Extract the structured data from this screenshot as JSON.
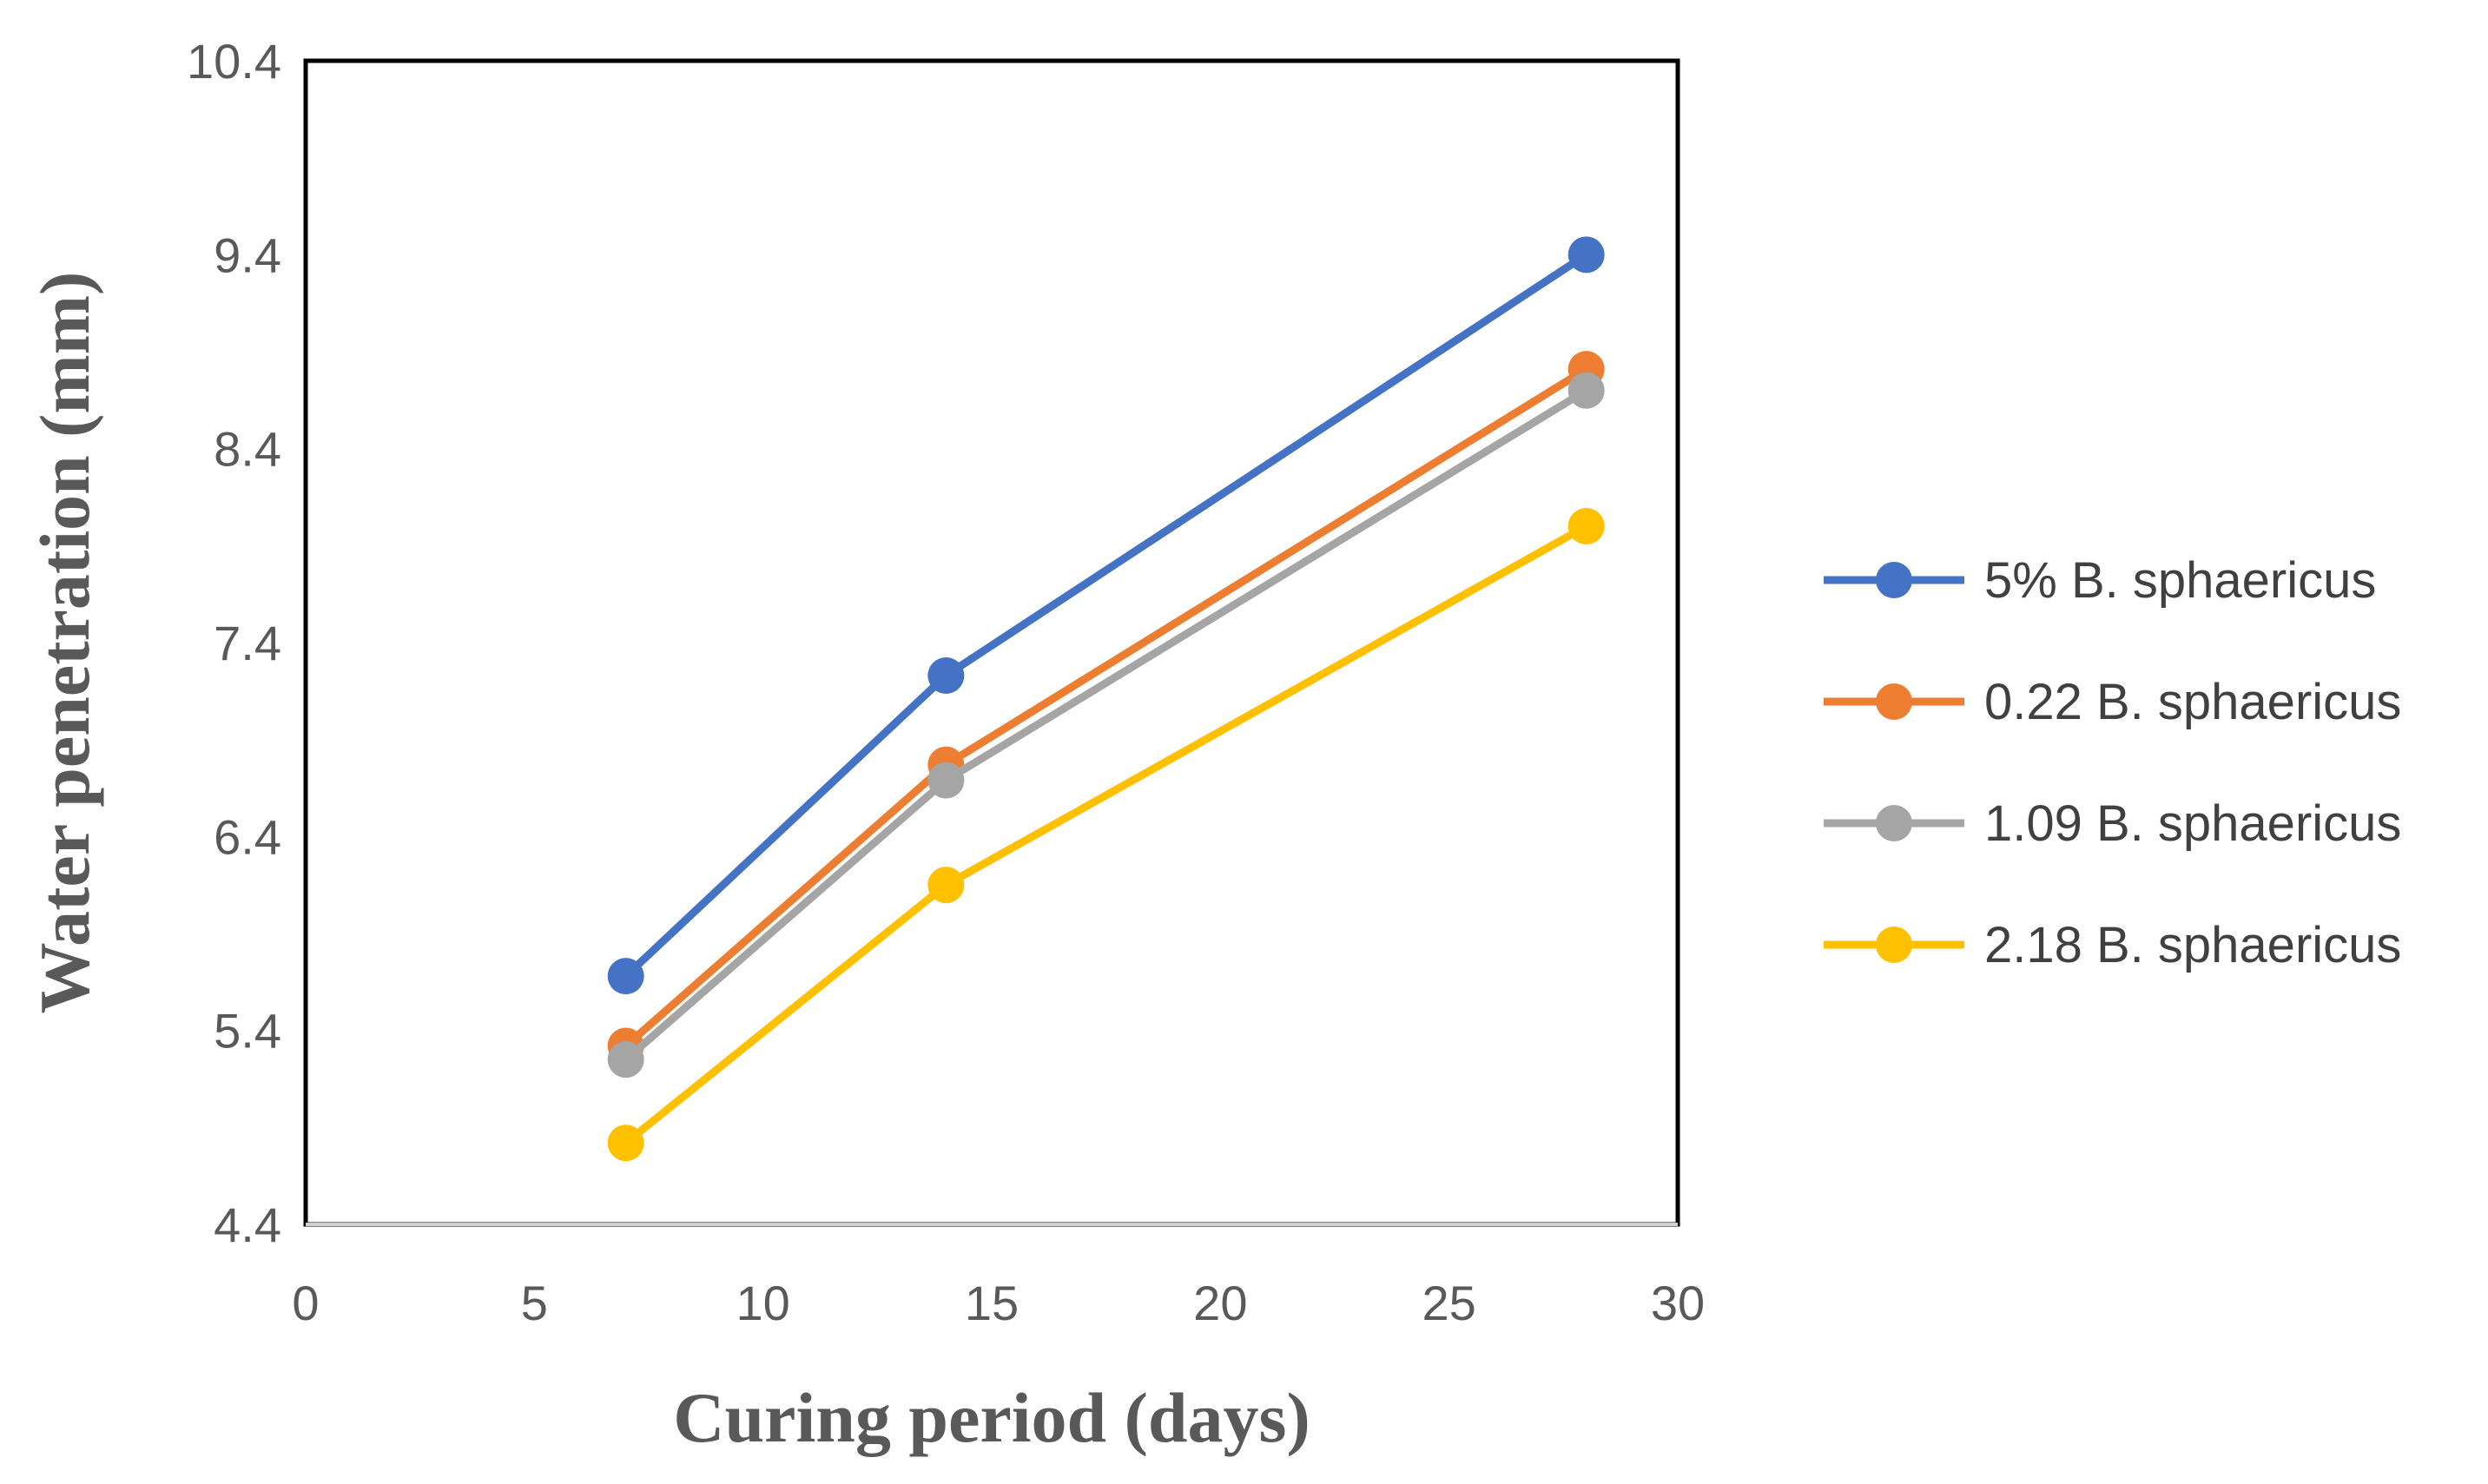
{
  "chart_data": {
    "type": "line",
    "title": "",
    "xlabel": "Curing period (days)",
    "ylabel": "Water penetration (mm)",
    "xlim": [
      0,
      30
    ],
    "ylim": [
      4.4,
      10.4
    ],
    "xticks": [
      "0",
      "5",
      "10",
      "15",
      "20",
      "25",
      "30"
    ],
    "yticks": [
      "4.4",
      "5.4",
      "6.4",
      "7.4",
      "8.4",
      "9.4",
      "10.4"
    ],
    "grid": false,
    "legend_position": "right",
    "x": [
      7,
      14,
      28
    ],
    "series": [
      {
        "name": "5% B. sphaericus",
        "color": "#4472C4",
        "values": [
          5.68,
          7.23,
          9.4
        ]
      },
      {
        "name": "0.22 B. sphaericus",
        "color": "#ED7D31",
        "values": [
          5.32,
          6.77,
          8.81
        ]
      },
      {
        "name": "1.09 B. sphaericus",
        "color": "#A5A5A5",
        "values": [
          5.25,
          6.69,
          8.7
        ]
      },
      {
        "name": "2.18 B. sphaericus",
        "color": "#FFC000",
        "values": [
          4.82,
          6.15,
          8.0
        ]
      }
    ]
  }
}
